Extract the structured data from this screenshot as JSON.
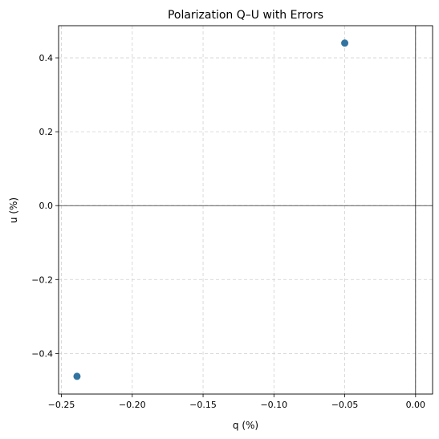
{
  "chart_data": {
    "type": "scatter",
    "title": "Polarization Q–U with Errors",
    "xlabel": "q (%)",
    "ylabel": "u (%)",
    "xlim": [
      -0.252,
      0.012
    ],
    "ylim": [
      -0.51,
      0.487
    ],
    "x_ticks": [
      {
        "value": -0.25,
        "label": "−0.25"
      },
      {
        "value": -0.2,
        "label": "−0.20"
      },
      {
        "value": -0.15,
        "label": "−0.15"
      },
      {
        "value": -0.1,
        "label": "−0.10"
      },
      {
        "value": -0.05,
        "label": "−0.05"
      },
      {
        "value": 0.0,
        "label": "0.00"
      }
    ],
    "y_ticks": [
      {
        "value": -0.4,
        "label": "−0.4"
      },
      {
        "value": -0.2,
        "label": "−0.2"
      },
      {
        "value": 0.0,
        "label": "0.0"
      },
      {
        "value": 0.2,
        "label": "0.2"
      },
      {
        "value": 0.4,
        "label": "0.4"
      }
    ],
    "grid": true,
    "reference_lines": {
      "x": 0,
      "y": 0
    },
    "points": [
      {
        "x": -0.239,
        "y": -0.462,
        "xerr": 0.001,
        "yerr": 0.002
      },
      {
        "x": -0.05,
        "y": 0.44,
        "xerr": 0.001,
        "yerr": 0.002
      }
    ],
    "marker_color": "#3274a1"
  }
}
